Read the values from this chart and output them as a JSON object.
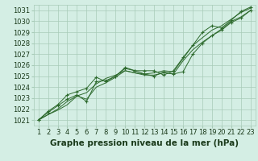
{
  "x": [
    1,
    2,
    3,
    4,
    5,
    6,
    7,
    8,
    9,
    10,
    11,
    12,
    13,
    14,
    15,
    16,
    17,
    18,
    19,
    20,
    21,
    22,
    23
  ],
  "line1": [
    1021.0,
    1021.5,
    1021.9,
    1022.4,
    1023.2,
    1023.5,
    1024.3,
    1024.8,
    1025.1,
    1025.5,
    1025.3,
    1025.2,
    1025.3,
    1025.5,
    1025.4,
    1026.6,
    1027.8,
    1028.5,
    1029.2,
    1029.6,
    1030.2,
    1030.8,
    1031.2
  ],
  "line2": [
    1021.0,
    1021.5,
    1022.0,
    1022.7,
    1023.2,
    1022.9,
    1024.0,
    1024.4,
    1024.9,
    1025.5,
    1025.3,
    1025.1,
    1025.1,
    1025.3,
    1025.2,
    1026.4,
    1027.4,
    1028.1,
    1028.7,
    1029.3,
    1030.0,
    1030.4,
    1031.0
  ],
  "line3": [
    1021.0,
    1021.7,
    1022.3,
    1022.9,
    1023.3,
    1022.7,
    1024.5,
    1024.6,
    1025.0,
    1025.8,
    1025.5,
    1025.2,
    1025.0,
    1025.4,
    1025.2,
    1025.4,
    1027.0,
    1028.0,
    1028.7,
    1029.2,
    1029.9,
    1030.3,
    1031.0
  ],
  "line4": [
    1021.0,
    1021.8,
    1022.4,
    1023.3,
    1023.6,
    1023.9,
    1024.9,
    1024.5,
    1025.0,
    1025.7,
    1025.5,
    1025.5,
    1025.5,
    1025.1,
    1025.5,
    1026.7,
    1027.8,
    1029.0,
    1029.6,
    1029.4,
    1030.1,
    1030.9,
    1031.3
  ],
  "ylim": [
    1020.5,
    1031.5
  ],
  "yticks": [
    1021,
    1022,
    1023,
    1024,
    1025,
    1026,
    1027,
    1028,
    1029,
    1030,
    1031
  ],
  "line_color": "#2d6a2d",
  "marker_color": "#2d6a2d",
  "bg_color": "#d4eee4",
  "grid_color": "#a8cbb8",
  "xlabel": "Graphe pression niveau de la mer (hPa)",
  "xlabel_fontsize": 7.5,
  "tick_fontsize": 6.0
}
